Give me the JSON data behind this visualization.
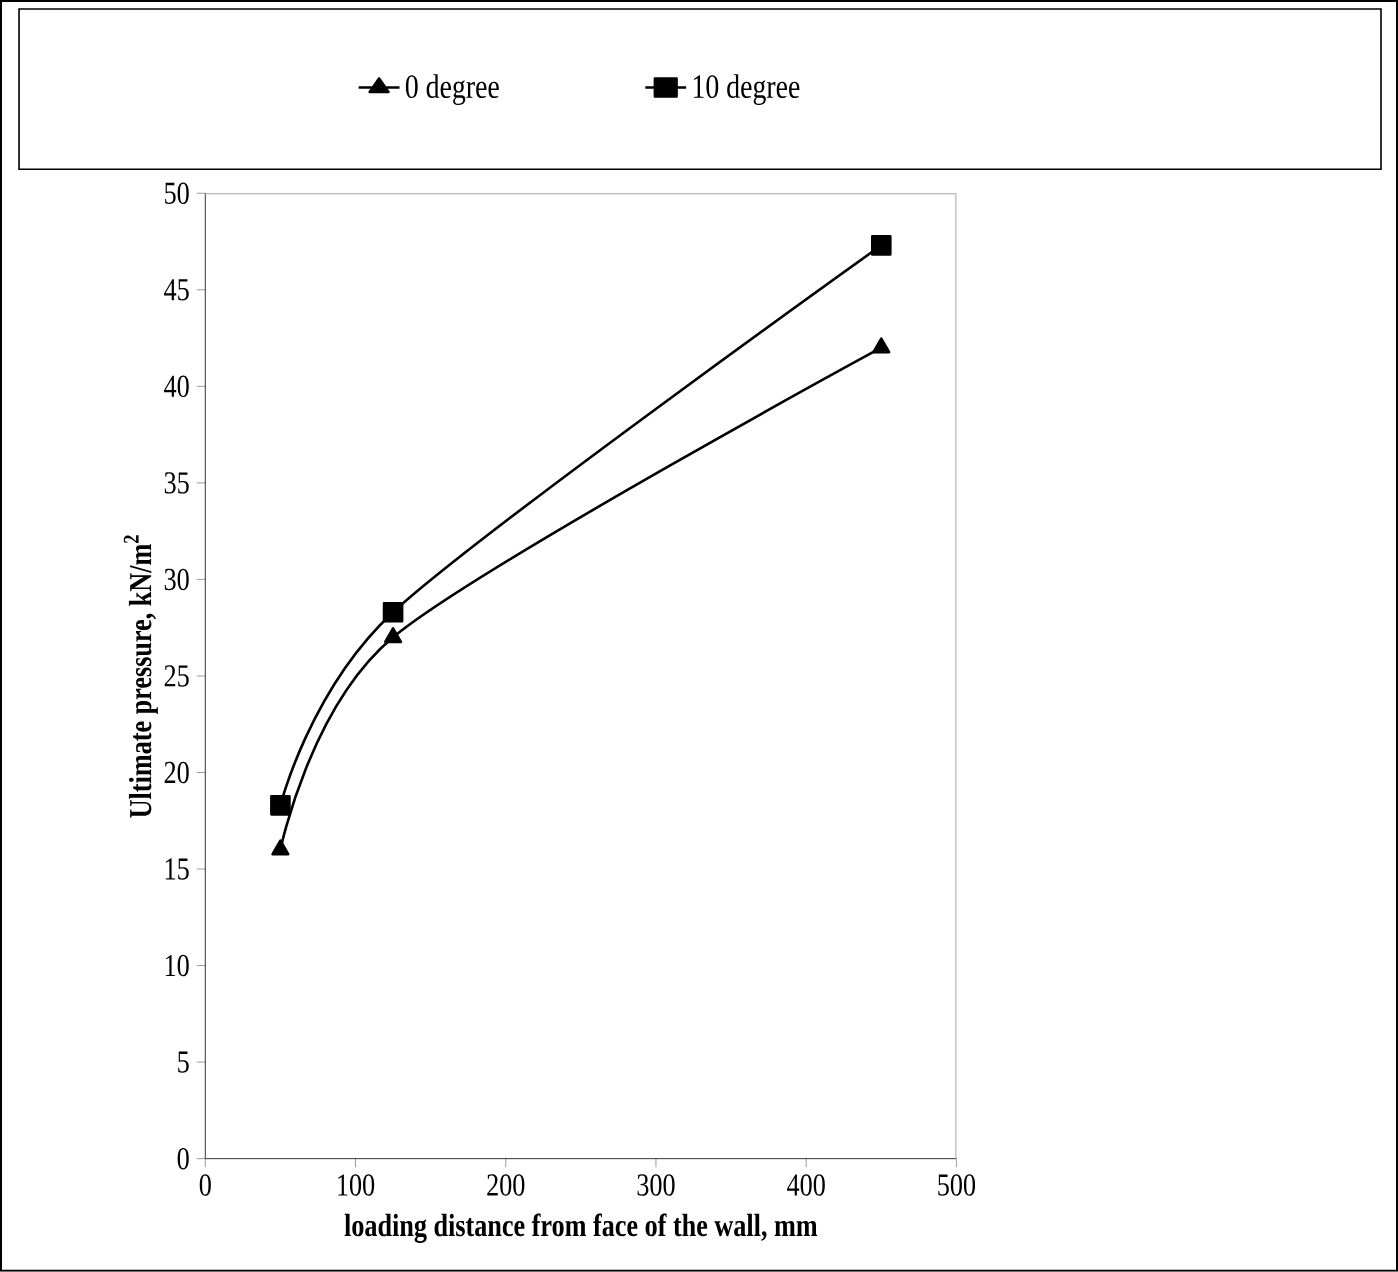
{
  "chart_data": {
    "type": "line",
    "xlabel": "loading distance from face of the wall, mm",
    "ylabel": "Ultimate pressure, kN/m$^{2}$",
    "x": [
      50,
      125,
      450
    ],
    "series": [
      {
        "name": "0 degree",
        "color": "#000000",
        "marker": "triangle",
        "values": [
          16,
          27,
          42
        ]
      },
      {
        "name": "10 degree",
        "color": "#000000",
        "marker": "square",
        "values": [
          18.3,
          28.3,
          47.3
        ]
      }
    ],
    "xlim": [
      0,
      500
    ],
    "ylim": [
      0,
      50
    ],
    "xticks": [
      0,
      100,
      200,
      300,
      400,
      500
    ],
    "yticks": [
      0,
      5,
      10,
      15,
      20,
      25,
      30,
      35,
      40,
      45,
      50
    ],
    "legend": "top",
    "grid": false,
    "line_style": "solid"
  }
}
